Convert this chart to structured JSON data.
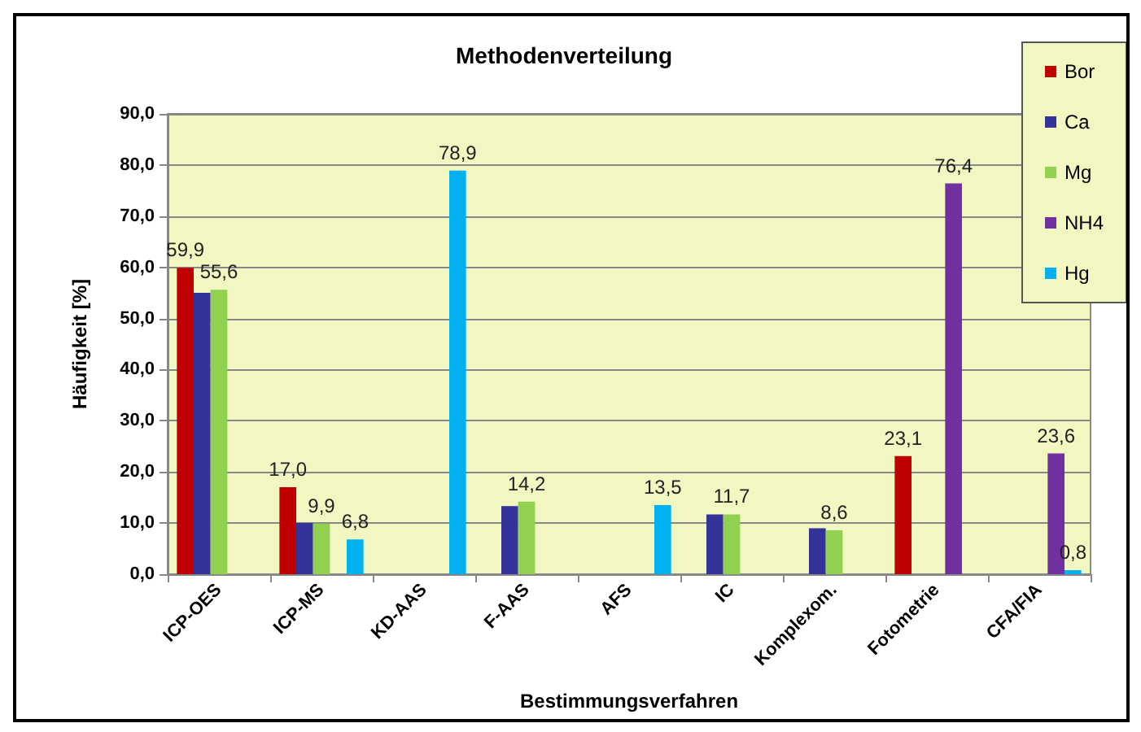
{
  "chart_data": {
    "type": "bar",
    "title": "Methodenverteilung",
    "xlabel": "Bestimmungsverfahren",
    "ylabel": "Häufigkeit [%]",
    "categories": [
      "ICP-OES",
      "ICP-MS",
      "KD-AAS",
      "F-AAS",
      "AFS",
      "IC",
      "Komplexom.",
      "Fotometrie",
      "CFA/FIA"
    ],
    "series": [
      {
        "name": "Bor",
        "color": "#c00000",
        "values": [
          59.9,
          17.0,
          null,
          null,
          null,
          null,
          null,
          23.1,
          null
        ],
        "value_labels": [
          "59,9",
          "17,0",
          null,
          null,
          null,
          null,
          null,
          "23,1",
          null
        ]
      },
      {
        "name": "Ca",
        "color": "#333399",
        "values": [
          55.0,
          10.0,
          null,
          13.3,
          null,
          11.7,
          9.0,
          null,
          null
        ]
      },
      {
        "name": "Mg",
        "color": "#92d050",
        "values": [
          55.6,
          9.9,
          null,
          14.2,
          null,
          11.7,
          8.6,
          null,
          null
        ],
        "value_labels": [
          "55,6",
          "9,9",
          null,
          "14,2",
          null,
          "11,7",
          "8,6",
          null,
          null
        ]
      },
      {
        "name": "NH4",
        "color": "#7030a0",
        "values": [
          null,
          null,
          null,
          null,
          null,
          null,
          null,
          76.4,
          23.6
        ],
        "value_labels": [
          null,
          null,
          null,
          null,
          null,
          null,
          null,
          "76,4",
          "23,6"
        ]
      },
      {
        "name": "Hg",
        "color": "#00b0f0",
        "values": [
          null,
          6.8,
          78.9,
          null,
          13.5,
          null,
          null,
          null,
          0.8
        ],
        "value_labels": [
          null,
          "6,8",
          "78,9",
          null,
          "13,5",
          null,
          null,
          null,
          "0,8"
        ]
      }
    ],
    "ylim": [
      0,
      90
    ],
    "yticks": [
      {
        "value": 0,
        "label": "0,0"
      },
      {
        "value": 10,
        "label": "10,0"
      },
      {
        "value": 20,
        "label": "20,0"
      },
      {
        "value": 30,
        "label": "30,0"
      },
      {
        "value": 40,
        "label": "40,0"
      },
      {
        "value": 50,
        "label": "50,0"
      },
      {
        "value": 60,
        "label": "60,0"
      },
      {
        "value": 70,
        "label": "70,0"
      },
      {
        "value": 80,
        "label": "80,0"
      },
      {
        "value": 90,
        "label": "90,0"
      }
    ],
    "grid": "y",
    "legend": "top right"
  }
}
